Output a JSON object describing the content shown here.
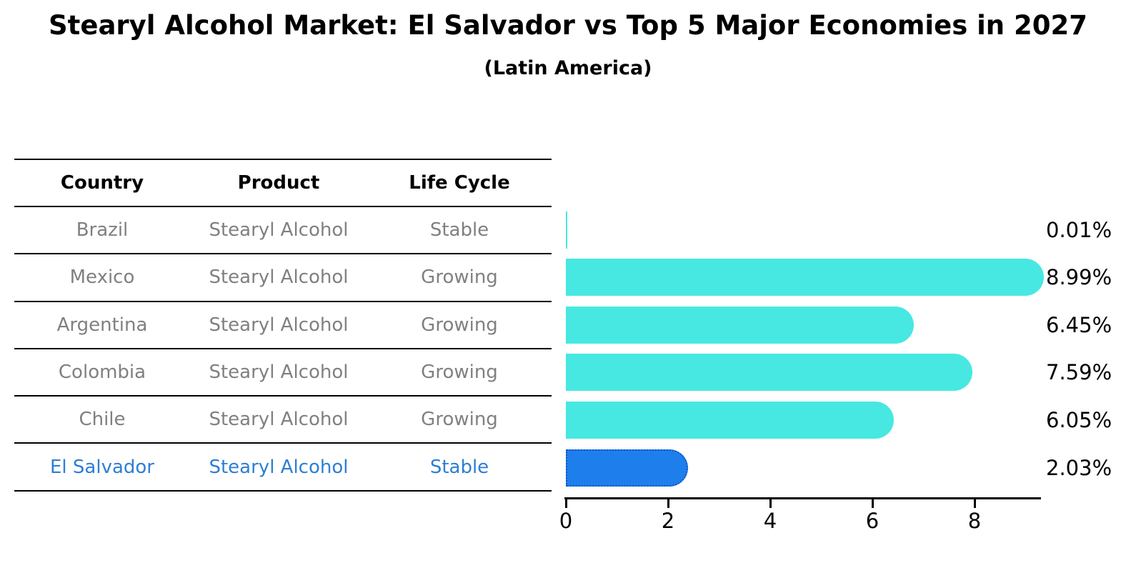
{
  "title": "Stearyl Alcohol Market: El Salvador vs Top 5 Major Economies in 2027",
  "subtitle": "(Latin America)",
  "table": {
    "headers": [
      "Country",
      "Product",
      "Life Cycle"
    ],
    "rows": [
      {
        "country": "Brazil",
        "product": "Stearyl Alcohol",
        "life_cycle": "Stable",
        "highlight": false
      },
      {
        "country": "Mexico",
        "product": "Stearyl Alcohol",
        "life_cycle": "Growing",
        "highlight": false
      },
      {
        "country": "Argentina",
        "product": "Stearyl Alcohol",
        "life_cycle": "Growing",
        "highlight": false
      },
      {
        "country": "Colombia",
        "product": "Stearyl Alcohol",
        "life_cycle": "Growing",
        "highlight": false
      },
      {
        "country": "Chile",
        "product": "Stearyl Alcohol",
        "life_cycle": "Growing",
        "highlight": false
      },
      {
        "country": "El Salvador",
        "product": "Stearyl Alcohol",
        "life_cycle": "Stable",
        "highlight": true
      }
    ]
  },
  "chart_data": {
    "type": "bar",
    "orientation": "horizontal",
    "title": "Stearyl Alcohol Market: El Salvador vs Top 5 Major Economies in 2027 (Latin America)",
    "categories": [
      "Brazil",
      "Mexico",
      "Argentina",
      "Colombia",
      "Chile",
      "El Salvador"
    ],
    "values": [
      0.01,
      8.99,
      6.45,
      7.59,
      6.05,
      2.03
    ],
    "value_labels": [
      "0.01%",
      "8.99%",
      "6.45%",
      "7.59%",
      "6.05%",
      "2.03%"
    ],
    "xticks": [
      "0",
      "2",
      "4",
      "6",
      "8"
    ],
    "xtick_values": [
      0,
      2,
      4,
      6,
      8
    ],
    "xlim": [
      0,
      9.3
    ],
    "grid": false,
    "legend": "none",
    "highlight_index": 5
  },
  "colors": {
    "bar": "#47e8e2",
    "highlight_bar": "#1e7eeb",
    "highlight_bar_edge": "#1254c8",
    "highlight_text": "#2e7ed4",
    "row_text": "#808080",
    "axis": "#000000"
  }
}
